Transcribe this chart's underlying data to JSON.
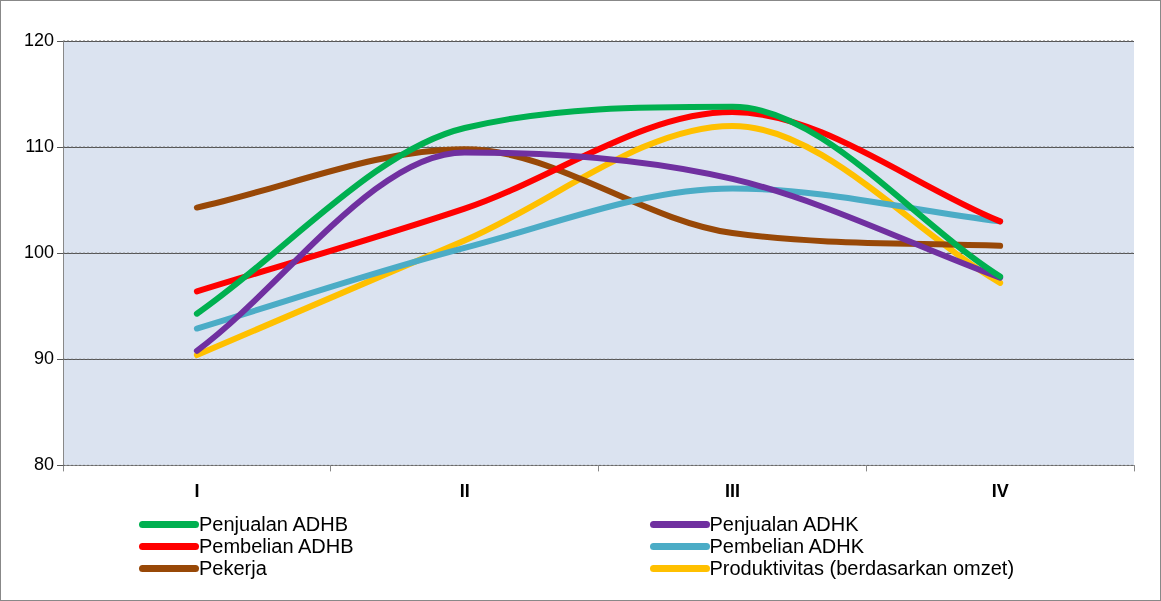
{
  "chart_data": {
    "type": "line",
    "categories": [
      "I",
      "II",
      "III",
      "IV"
    ],
    "ylim": [
      80,
      120
    ],
    "yticks": [
      80,
      90,
      100,
      110,
      120
    ],
    "grid": "y",
    "legend": "bottom",
    "marker": "none",
    "series": [
      {
        "name": "Penjualan ADHB",
        "color": "#00b050",
        "values": [
          94.3,
          111.8,
          113.8,
          97.8
        ]
      },
      {
        "name": "Penjualan ADHK",
        "color": "#7030a0",
        "values": [
          90.8,
          109.5,
          107,
          97.7
        ]
      },
      {
        "name": "Pembelian ADHB",
        "color": "#ff0000",
        "values": [
          96.4,
          104.2,
          113.3,
          103
        ]
      },
      {
        "name": "Pembelian ADHK",
        "color": "#4bacc6",
        "values": [
          92.9,
          100.5,
          106.1,
          103
        ]
      },
      {
        "name": "Pekerja",
        "color": "#984807",
        "values": [
          104.3,
          109.8,
          101.9,
          100.7
        ]
      },
      {
        "name": "Produktivitas (berdasarkan omzet)",
        "color": "#ffc000",
        "values": [
          90.4,
          101.2,
          112,
          97.2
        ]
      }
    ]
  }
}
